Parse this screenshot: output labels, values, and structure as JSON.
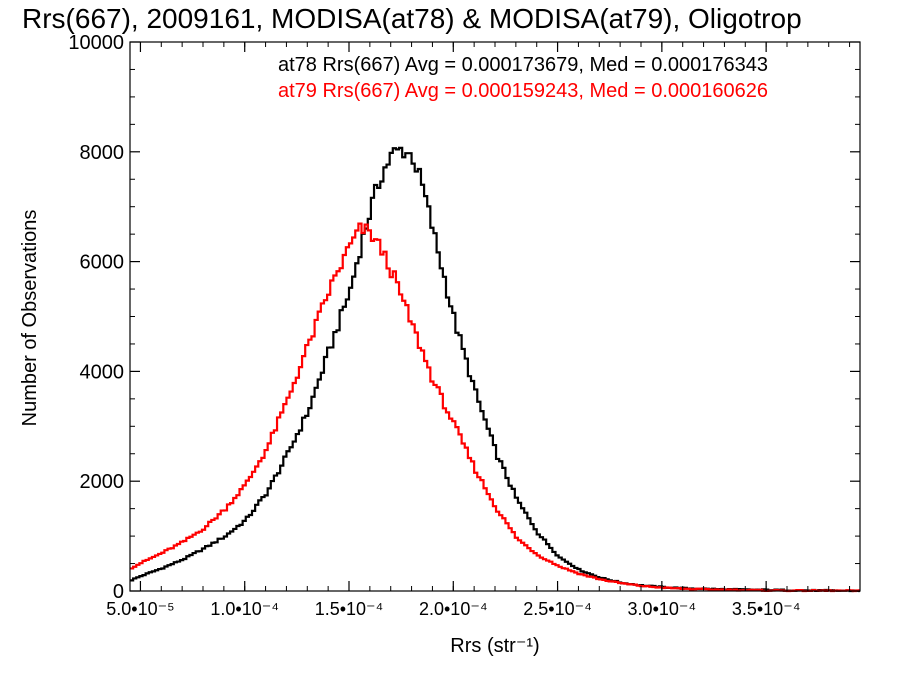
{
  "chart_data": {
    "type": "line",
    "title": "Rrs(667), 2009161, MODISA(at78) & MODISA(at79), Oligotrop",
    "xlabel": "Rrs (str⁻¹)",
    "ylabel": "Number of Observations",
    "xlim": [
      4.5e-05,
      0.000395
    ],
    "ylim": [
      0,
      10000
    ],
    "x_ticks": [
      {
        "value": 5e-05,
        "label": "5.0•10⁻⁵"
      },
      {
        "value": 0.0001,
        "label": "1.0•10⁻⁴"
      },
      {
        "value": 0.00015,
        "label": "1.5•10⁻⁴"
      },
      {
        "value": 0.0002,
        "label": "2.0•10⁻⁴"
      },
      {
        "value": 0.00025,
        "label": "2.5•10⁻⁴"
      },
      {
        "value": 0.0003,
        "label": "3.0•10⁻⁴"
      },
      {
        "value": 0.00035,
        "label": "3.5•10⁻⁴"
      }
    ],
    "y_ticks": [
      {
        "value": 0,
        "label": "0"
      },
      {
        "value": 2000,
        "label": "2000"
      },
      {
        "value": 4000,
        "label": "4000"
      },
      {
        "value": 6000,
        "label": "6000"
      },
      {
        "value": 8000,
        "label": "8000"
      },
      {
        "value": 10000,
        "label": "10000"
      }
    ],
    "grid": false,
    "legend_position": "top-right",
    "series": [
      {
        "name": "at78",
        "legend_text": "at78 Rrs(667) Avg = 0.000173679, Med = 0.000176343",
        "color": "#000000",
        "x": [
          4.5e-05,
          5e-05,
          6e-05,
          7e-05,
          8e-05,
          9e-05,
          0.0001,
          0.00011,
          0.00012,
          0.00013,
          0.00014,
          0.00015,
          0.000155,
          0.00016,
          0.000165,
          0.00017,
          0.000175,
          0.00018,
          0.000185,
          0.00019,
          0.0002,
          0.00021,
          0.00022,
          0.00023,
          0.00024,
          0.00025,
          0.00026,
          0.00027,
          0.00028,
          0.00029,
          0.0003,
          0.00031,
          0.00032,
          0.00033,
          0.00034,
          0.00035,
          0.00036,
          0.00037,
          0.00038,
          0.00039,
          0.000395
        ],
        "y": [
          200,
          280,
          420,
          580,
          780,
          1000,
          1300,
          1800,
          2500,
          3300,
          4400,
          5500,
          6300,
          7000,
          7600,
          7950,
          8050,
          7900,
          7300,
          6500,
          4900,
          3600,
          2500,
          1650,
          1050,
          620,
          380,
          240,
          150,
          100,
          70,
          50,
          40,
          30,
          25,
          20,
          15,
          10,
          8,
          5,
          5
        ]
      },
      {
        "name": "at79",
        "legend_text": "at79 Rrs(667) Avg = 0.000159243, Med = 0.000160626",
        "color": "#ff0000",
        "x": [
          4.5e-05,
          5e-05,
          6e-05,
          7e-05,
          8e-05,
          9e-05,
          0.0001,
          0.00011,
          0.00012,
          0.00013,
          0.00014,
          0.00015,
          0.000155,
          0.00016,
          0.000165,
          0.00017,
          0.000175,
          0.00018,
          0.000185,
          0.00019,
          0.0002,
          0.00021,
          0.00022,
          0.00023,
          0.00024,
          0.00025,
          0.00026,
          0.00027,
          0.00028,
          0.00029,
          0.0003,
          0.00031,
          0.00032,
          0.00033,
          0.00034,
          0.00035,
          0.00036,
          0.00037,
          0.00038,
          0.00039,
          0.000395
        ],
        "y": [
          420,
          520,
          700,
          900,
          1150,
          1500,
          1950,
          2600,
          3500,
          4500,
          5500,
          6300,
          6600,
          6500,
          6200,
          5800,
          5300,
          4800,
          4300,
          3800,
          3000,
          2200,
          1500,
          950,
          650,
          450,
          310,
          210,
          140,
          90,
          60,
          40,
          30,
          22,
          15,
          10,
          8,
          6,
          5,
          4,
          4
        ]
      }
    ]
  }
}
